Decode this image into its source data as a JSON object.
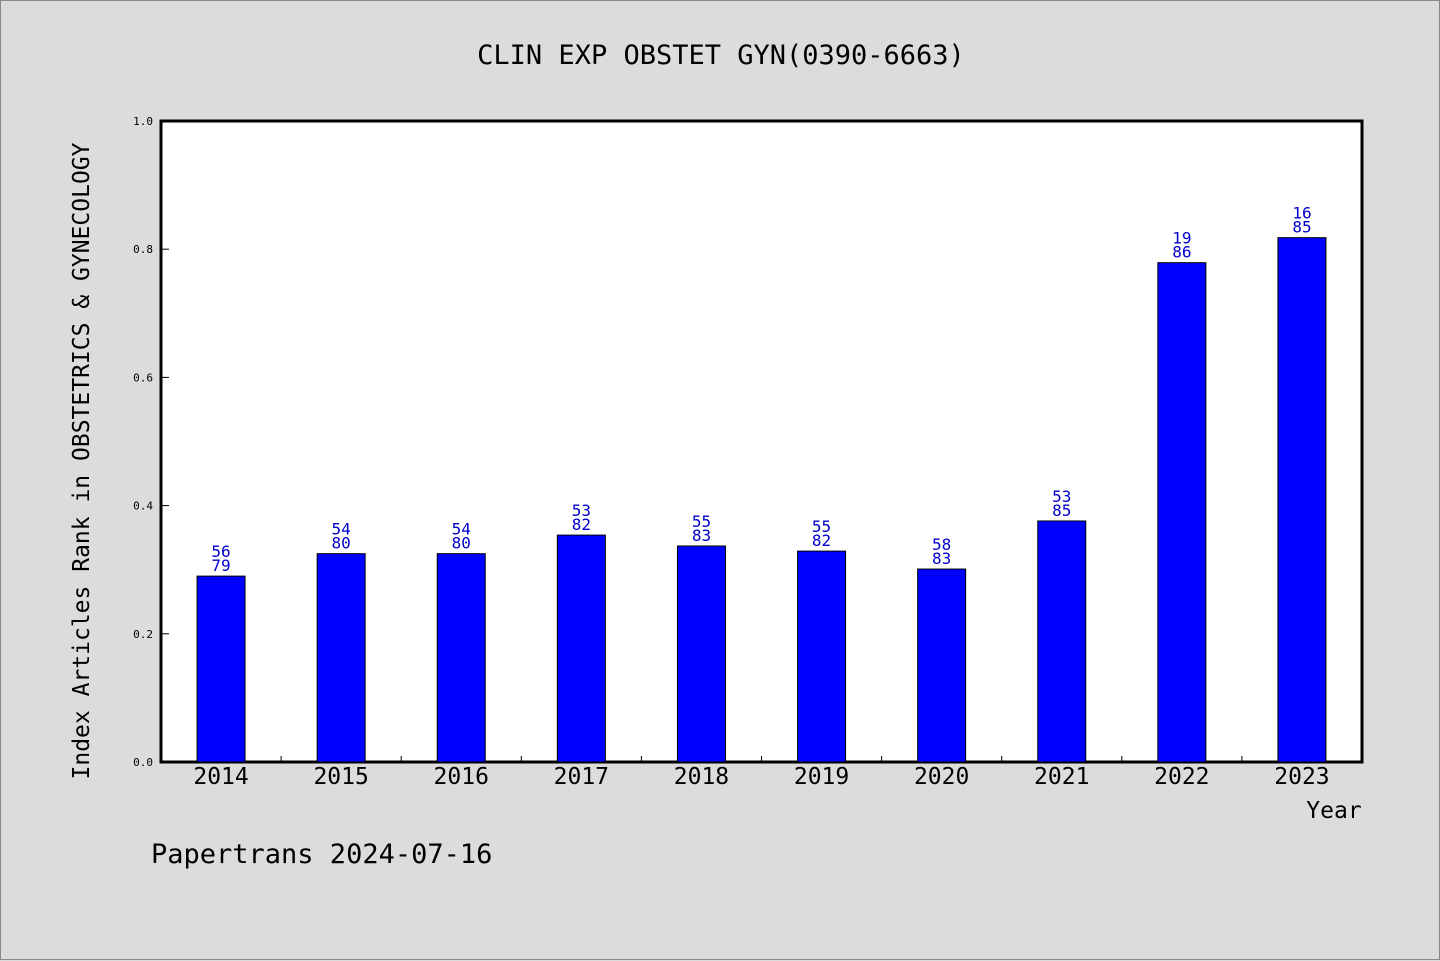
{
  "chart_data": {
    "type": "bar",
    "title": "CLIN EXP OBSTET GYN(0390-6663)",
    "xlabel": "Year",
    "ylabel": "Index Articles Rank in OBSTETRICS & GYNECOLOGY",
    "ylim": [
      0,
      1.0
    ],
    "yticks": [
      "0.0",
      "0.2",
      "0.4",
      "0.6",
      "0.8",
      "1.0"
    ],
    "categories": [
      "2014",
      "2015",
      "2016",
      "2017",
      "2018",
      "2019",
      "2020",
      "2021",
      "2022",
      "2023"
    ],
    "values": [
      0.29,
      0.325,
      0.325,
      0.354,
      0.337,
      0.329,
      0.301,
      0.376,
      0.779,
      0.818
    ],
    "labels_top": [
      "56",
      "54",
      "54",
      "53",
      "55",
      "55",
      "58",
      "53",
      "19",
      "16"
    ],
    "labels_bottom": [
      "79",
      "80",
      "80",
      "82",
      "83",
      "82",
      "83",
      "85",
      "86",
      "85"
    ],
    "bar_color": "#0000ff",
    "label_color": "#0000cc",
    "grid": false
  },
  "footer": "Papertrans 2024-07-16"
}
